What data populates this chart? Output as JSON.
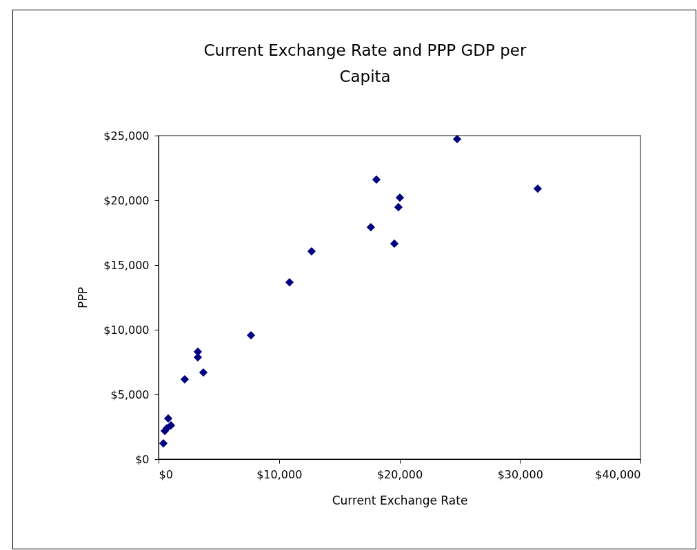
{
  "chart_data": {
    "type": "scatter",
    "title": "Current Exchange Rate and PPP GDP per Capita",
    "xlabel": "Current Exchange Rate",
    "ylabel": "PPP",
    "marker": "diamond",
    "grid": false,
    "legend": false,
    "x": [
      400,
      515,
      690,
      800,
      1030,
      2170,
      3260,
      3260,
      3720,
      7670,
      10870,
      12700,
      17620,
      18080,
      19570,
      19910,
      20030,
      24780,
      31470
    ],
    "series": [
      {
        "color": "#000080",
        "values": [
          1220,
          2180,
          2390,
          3140,
          2610,
          6170,
          8300,
          7870,
          6700,
          9570,
          13670,
          16060,
          17920,
          21600,
          16650,
          19470,
          20210,
          24730,
          20900
        ]
      }
    ],
    "xlim": [
      0,
      40000
    ],
    "xticks": [
      {
        "value": 0,
        "label": "$0"
      },
      {
        "value": 10000,
        "label": "$10,000"
      },
      {
        "value": 20000,
        "label": "$20,000"
      },
      {
        "value": 30000,
        "label": "$30,000"
      },
      {
        "value": 40000,
        "label": "$40,000"
      }
    ],
    "ylim": [
      0,
      25000
    ],
    "yticks": [
      {
        "value": 0,
        "label": "$0"
      },
      {
        "value": 5000,
        "label": "$5,000"
      },
      {
        "value": 10000,
        "label": "$10,000"
      },
      {
        "value": 15000,
        "label": "$15,000"
      },
      {
        "value": 20000,
        "label": "$20,000"
      },
      {
        "value": 25000,
        "label": "$25,000"
      }
    ]
  }
}
